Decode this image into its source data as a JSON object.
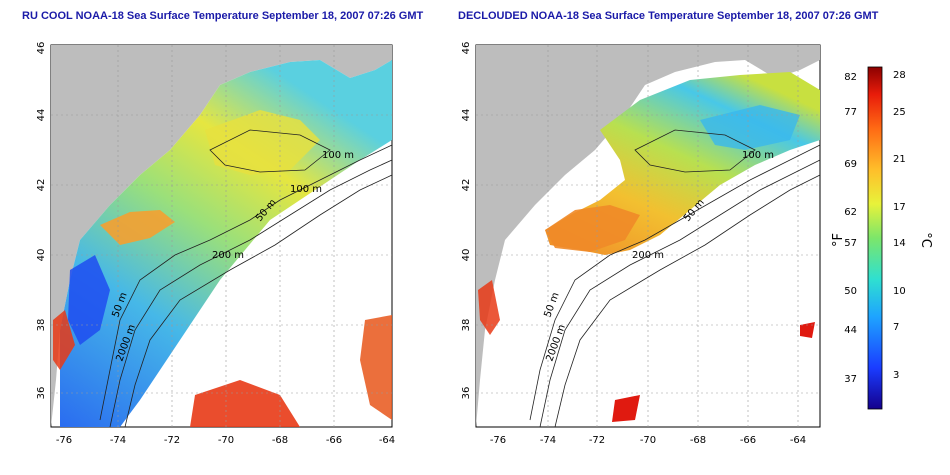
{
  "panels": [
    {
      "title": "RU COOL NOAA-18 Sea Surface Temperature September 18, 2007 07:26 GMT",
      "contours": [
        "100 m",
        "100 m",
        "50 m",
        "200 m",
        "50 m",
        "2000 m"
      ]
    },
    {
      "title": "DECLOUDED NOAA-18 Sea Surface Temperature September 18, 2007 07:26 GMT",
      "contours": [
        "100 m",
        "50 m",
        "200 m",
        "50 m",
        "2000 m"
      ]
    }
  ],
  "axes": {
    "x_ticks": [
      "-76",
      "-74",
      "-72",
      "-70",
      "-68",
      "-66",
      "-64"
    ],
    "y_ticks": [
      "36",
      "38",
      "40",
      "42",
      "44",
      "46"
    ]
  },
  "colorbar": {
    "f_label": "°F",
    "c_label": "°C",
    "f_ticks": [
      "82",
      "77",
      "69",
      "62",
      "57",
      "50",
      "44",
      "37"
    ],
    "c_ticks": [
      "28",
      "25",
      "21",
      "17",
      "14",
      "10",
      "7",
      "3"
    ]
  },
  "colors": {
    "land": "#bdbdbd",
    "ocean_warm": "#f5a623",
    "ocean_cool": "#2aa6e0",
    "title": "#1a1aa8"
  }
}
